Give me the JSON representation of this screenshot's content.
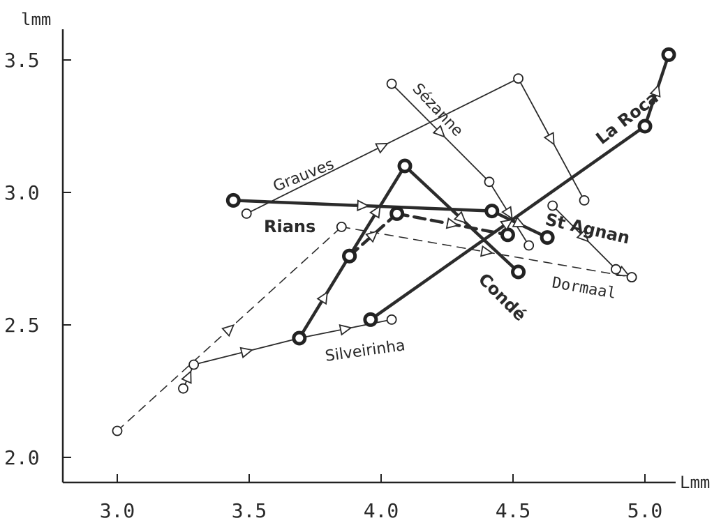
{
  "chart_data": {
    "type": "line",
    "title": "",
    "xlabel": "Lmm",
    "ylabel": "lmm",
    "xlim": [
      2.8,
      5.2
    ],
    "ylim": [
      1.9,
      3.6
    ],
    "xticks": [
      "3.0",
      "3.5",
      "4.0",
      "4.5",
      "5.0"
    ],
    "yticks": [
      "2.0",
      "2.5",
      "3.0",
      "3.5"
    ],
    "grid": false,
    "legend": "none",
    "series": [
      {
        "name": "Grauves",
        "style": "thin",
        "marker": "open",
        "x": [
          3.49,
          4.52,
          4.77
        ],
        "y": [
          2.92,
          3.43,
          2.97
        ]
      },
      {
        "name": "Sézanne",
        "style": "thin",
        "marker": "open",
        "x": [
          4.04,
          4.41,
          4.56
        ],
        "y": [
          3.41,
          3.04,
          2.8
        ]
      },
      {
        "name": "St Agnan",
        "style": "thin",
        "marker": "open",
        "x": [
          4.65,
          4.89,
          4.95
        ],
        "y": [
          2.95,
          2.71,
          2.68
        ]
      },
      {
        "name": "Dormaal",
        "style": "dashed",
        "marker": "open",
        "x": [
          3.0,
          3.85,
          4.95
        ],
        "y": [
          2.1,
          2.87,
          2.68
        ]
      },
      {
        "name": "Silveirinha",
        "style": "thin",
        "marker": "open",
        "x": [
          3.25,
          3.29,
          3.69,
          4.04
        ],
        "y": [
          2.26,
          2.35,
          2.45,
          2.52
        ]
      },
      {
        "name": "Rians",
        "style": "bold",
        "marker": "filled",
        "x": [
          3.44,
          4.42,
          4.63
        ],
        "y": [
          2.97,
          2.93,
          2.83
        ]
      },
      {
        "name": "Condé",
        "style": "bold",
        "marker": "filled",
        "x": [
          3.69,
          3.88,
          4.09,
          4.52
        ],
        "y": [
          2.45,
          2.76,
          3.1,
          2.7
        ]
      },
      {
        "name": "",
        "style": "bold-dashed",
        "marker": "filled",
        "x": [
          3.88,
          4.06,
          4.48
        ],
        "y": [
          2.76,
          2.92,
          2.84
        ]
      },
      {
        "name": "La Roca",
        "style": "bold",
        "marker": "filled",
        "x": [
          3.96,
          5.0,
          5.09
        ],
        "y": [
          2.52,
          3.25,
          3.52
        ]
      }
    ]
  }
}
